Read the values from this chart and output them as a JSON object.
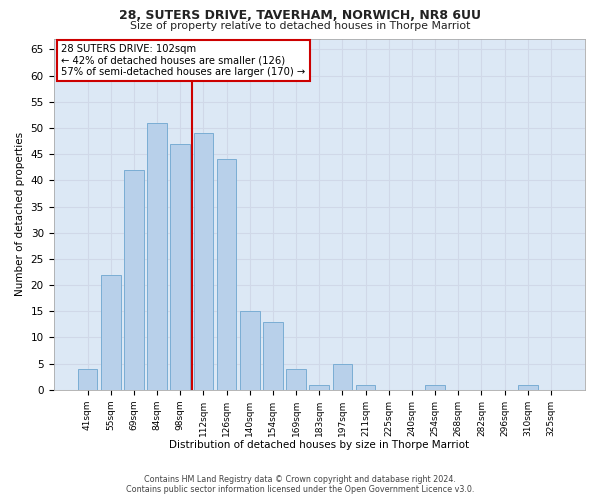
{
  "title1": "28, SUTERS DRIVE, TAVERHAM, NORWICH, NR8 6UU",
  "title2": "Size of property relative to detached houses in Thorpe Marriot",
  "xlabel": "Distribution of detached houses by size in Thorpe Marriot",
  "ylabel": "Number of detached properties",
  "footer1": "Contains HM Land Registry data © Crown copyright and database right 2024.",
  "footer2": "Contains public sector information licensed under the Open Government Licence v3.0.",
  "bar_labels": [
    "41sqm",
    "55sqm",
    "69sqm",
    "84sqm",
    "98sqm",
    "112sqm",
    "126sqm",
    "140sqm",
    "154sqm",
    "169sqm",
    "183sqm",
    "197sqm",
    "211sqm",
    "225sqm",
    "240sqm",
    "254sqm",
    "268sqm",
    "282sqm",
    "296sqm",
    "310sqm",
    "325sqm"
  ],
  "bar_values": [
    4,
    22,
    42,
    51,
    47,
    49,
    44,
    15,
    13,
    4,
    1,
    5,
    1,
    0,
    0,
    1,
    0,
    0,
    0,
    1,
    0
  ],
  "bar_color": "#b8d0ea",
  "bar_edge_color": "#7aadd4",
  "reference_line_x": 4.5,
  "reference_line_label": "28 SUTERS DRIVE: 102sqm",
  "annotation_line1": "← 42% of detached houses are smaller (126)",
  "annotation_line2": "57% of semi-detached houses are larger (170) →",
  "annotation_box_color": "#ffffff",
  "annotation_box_edge": "#cc0000",
  "ref_line_color": "#cc0000",
  "ylim": [
    0,
    67
  ],
  "yticks": [
    0,
    5,
    10,
    15,
    20,
    25,
    30,
    35,
    40,
    45,
    50,
    55,
    60,
    65
  ],
  "grid_color": "#d0d8e8",
  "bg_color": "#dce8f5",
  "fig_bg_color": "#ffffff"
}
